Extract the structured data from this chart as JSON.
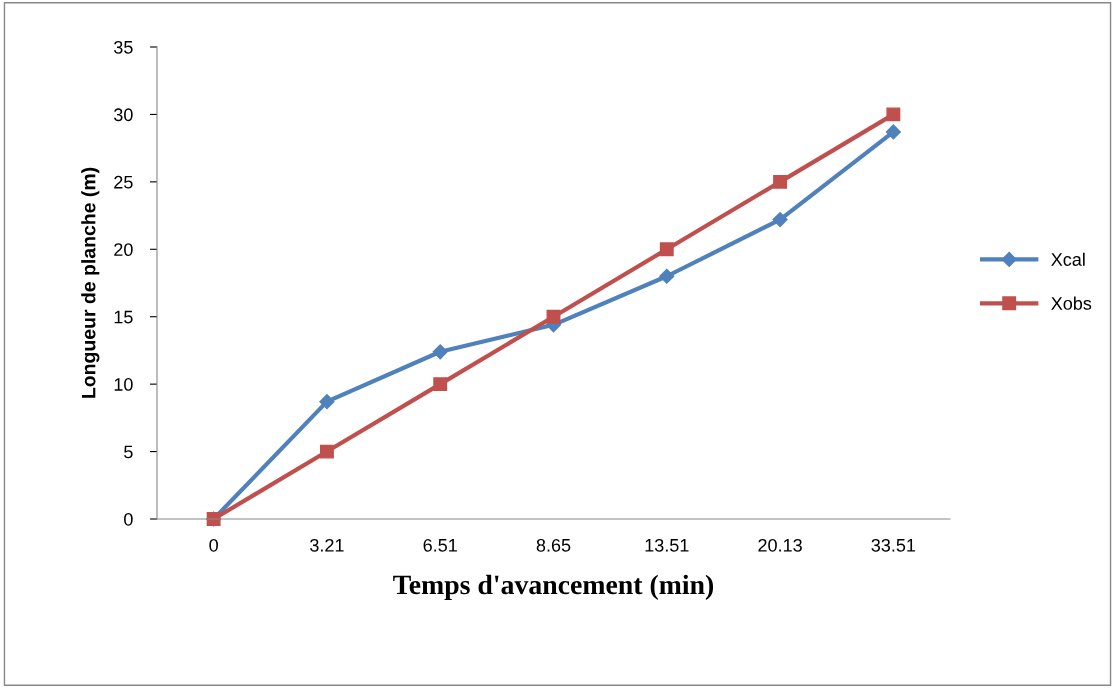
{
  "chart_data": {
    "type": "line",
    "xlabel": "Temps d'avancement (min)",
    "ylabel": "Longueur de planche (m)",
    "categories": [
      "0",
      "3.21",
      "6.51",
      "8.65",
      "13.51",
      "20.13",
      "33.51"
    ],
    "series": [
      {
        "name": "Xcal",
        "color": "#4f81bd",
        "marker": "diamond",
        "values": [
          0,
          8.7,
          12.4,
          14.4,
          18.0,
          22.2,
          28.7
        ]
      },
      {
        "name": "Xobs",
        "color": "#c0504d",
        "marker": "square",
        "values": [
          0,
          5,
          10,
          15,
          20,
          25,
          30
        ]
      }
    ],
    "ylim": [
      0,
      35
    ],
    "yticks": [
      0,
      5,
      10,
      15,
      20,
      25,
      30,
      35
    ],
    "grid": false,
    "legend": "right"
  }
}
